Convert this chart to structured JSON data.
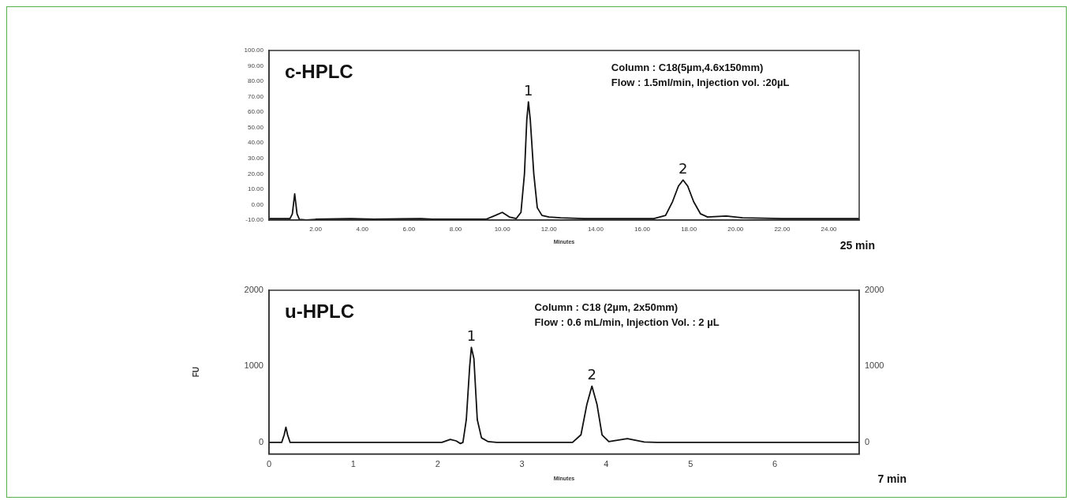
{
  "chart_data": [
    {
      "type": "line",
      "xlabel": "Minutes",
      "annotations": [
        "c-HPLC",
        "Column : C18(5µm,4.6x150mm)",
        "Flow : 1.5ml/min, Injection vol. :20µL",
        "25 min",
        {
          "text": "1",
          "x": 11.12,
          "y": 66.7
        },
        {
          "text": "2",
          "x": 17.75,
          "y": 16
        }
      ],
      "xlim": [
        0,
        25.3
      ],
      "xticks": [
        {
          "value": 2,
          "label": "2.00"
        },
        {
          "value": 4,
          "label": "4.00"
        },
        {
          "value": 6,
          "label": "6.00"
        },
        {
          "value": 8,
          "label": "8.00"
        },
        {
          "value": 10,
          "label": "10.00"
        },
        {
          "value": 12,
          "label": "12.00"
        },
        {
          "value": 14,
          "label": "14.00"
        },
        {
          "value": 16,
          "label": "16.00"
        },
        {
          "value": 18,
          "label": "18.00"
        },
        {
          "value": 20,
          "label": "20.00"
        },
        {
          "value": 22,
          "label": "22.00"
        },
        {
          "value": 24,
          "label": "24.00"
        }
      ],
      "ylim": [
        -10,
        100
      ],
      "yticks": [
        {
          "value": -10,
          "label": "-10.00"
        },
        {
          "value": 0,
          "label": "0.00"
        },
        {
          "value": 10,
          "label": "10.00"
        },
        {
          "value": 20,
          "label": "20.00"
        },
        {
          "value": 30,
          "label": "30.00"
        },
        {
          "value": 40,
          "label": "40.00"
        },
        {
          "value": 50,
          "label": "50.00"
        },
        {
          "value": 60,
          "label": "60.00"
        },
        {
          "value": 70,
          "label": "70.00"
        },
        {
          "value": 80,
          "label": "80.00"
        },
        {
          "value": 90,
          "label": "90.00"
        },
        {
          "value": 100,
          "label": "100.00"
        }
      ],
      "series": [
        {
          "color": "#111111",
          "x": [
            0,
            0.9,
            1.0,
            1.1,
            1.2,
            1.3,
            1.6,
            2,
            3.5,
            4.5,
            6.5,
            7,
            9.3,
            9.7,
            10.0,
            10.3,
            10.6,
            10.8,
            10.95,
            11.05,
            11.12,
            11.2,
            11.35,
            11.5,
            11.7,
            12,
            12.5,
            13.5,
            16.5,
            17.0,
            17.3,
            17.55,
            17.75,
            17.95,
            18.2,
            18.5,
            18.8,
            19.6,
            20.3,
            22,
            25.3
          ],
          "values": [
            -9,
            -9,
            -6,
            7,
            -6,
            -9.5,
            -10,
            -9.5,
            -9,
            -9.5,
            -9,
            -9.5,
            -9.5,
            -7,
            -5,
            -8,
            -9,
            -5,
            20,
            55,
            66.7,
            55,
            20,
            -2,
            -7,
            -8,
            -8.5,
            -9,
            -9,
            -7,
            2,
            12,
            16,
            12,
            2,
            -6,
            -8,
            -7.4,
            -8.5,
            -9,
            -9
          ]
        }
      ]
    },
    {
      "type": "line",
      "xlabel": "Minutes",
      "ylabel": "FU",
      "annotations": [
        "u-HPLC",
        "Column : C18 (2µm, 2x50mm)",
        "Flow : 0.6 mL/min, Injection Vol. : 2 µL",
        "7 min",
        {
          "text": "1",
          "x": 2.4,
          "y": 1250
        },
        {
          "text": "2",
          "x": 3.83,
          "y": 740
        }
      ],
      "xlim": [
        0,
        7
      ],
      "xticks": [
        0,
        1,
        2,
        3,
        4,
        5,
        6
      ],
      "ylim": [
        -150,
        2000
      ],
      "yticks": [
        0,
        1000,
        2000
      ],
      "y2lim": [
        -150,
        2000
      ],
      "y2ticks": [
        0,
        1000,
        2000
      ],
      "series": [
        {
          "color": "#111111",
          "x": [
            0,
            0.15,
            0.18,
            0.2,
            0.22,
            0.25,
            2.05,
            2.15,
            2.22,
            2.27,
            2.3,
            2.34,
            2.38,
            2.4,
            2.43,
            2.47,
            2.52,
            2.6,
            2.7,
            3.6,
            3.7,
            3.77,
            3.83,
            3.89,
            3.95,
            4.03,
            4.25,
            4.45,
            4.6,
            7
          ],
          "values": [
            0,
            0,
            100,
            200,
            100,
            0,
            0,
            40,
            20,
            -15,
            0,
            300,
            1000,
            1250,
            1100,
            300,
            60,
            10,
            0,
            0,
            100,
            500,
            740,
            500,
            100,
            10,
            50,
            5,
            0,
            0
          ]
        }
      ]
    }
  ]
}
